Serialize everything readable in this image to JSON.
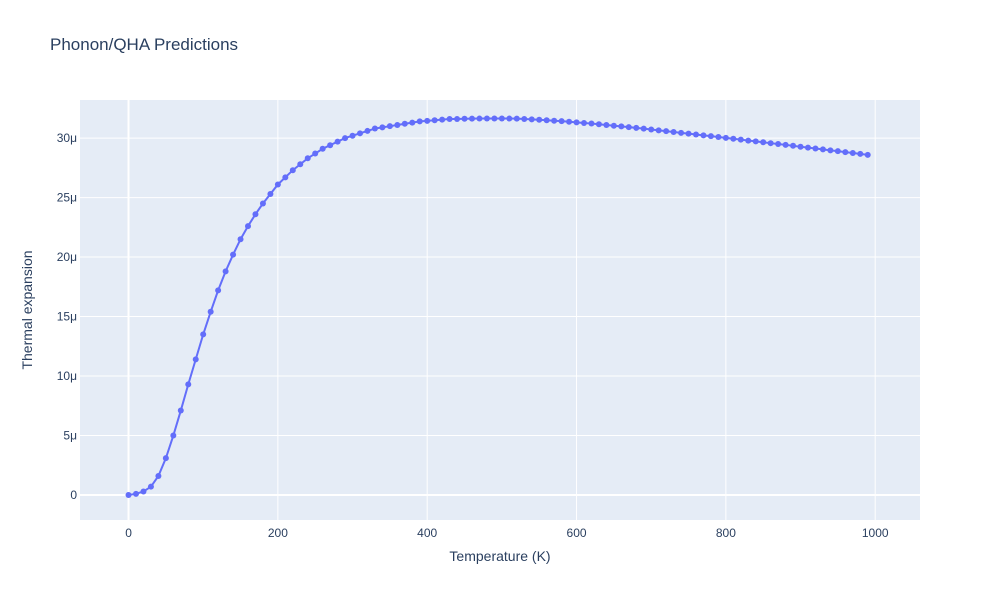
{
  "chart_data": {
    "type": "line",
    "mode": "lines+markers",
    "title": "Phonon/QHA Predictions",
    "xlabel": "Temperature (K)",
    "ylabel": "Thermal expansion",
    "xlim": [
      -65,
      1060
    ],
    "ylim": [
      -2.1,
      33.2
    ],
    "x_ticks": [
      0,
      200,
      400,
      600,
      800,
      1000
    ],
    "x_tick_labels": [
      "0",
      "200",
      "400",
      "600",
      "800",
      "1000"
    ],
    "y_ticks": [
      0,
      5,
      10,
      15,
      20,
      25,
      30
    ],
    "y_tick_labels": [
      "0",
      "5μ",
      "10μ",
      "15μ",
      "20μ",
      "25μ",
      "30μ"
    ],
    "grid": true,
    "plot_bgcolor": "#e5ecf6",
    "series": [
      {
        "color": "#636efa",
        "x": [
          0,
          10,
          20,
          30,
          40,
          50,
          60,
          70,
          80,
          90,
          100,
          110,
          120,
          130,
          140,
          150,
          160,
          170,
          180,
          190,
          200,
          210,
          220,
          230,
          240,
          250,
          260,
          270,
          280,
          290,
          300,
          310,
          320,
          330,
          340,
          350,
          360,
          370,
          380,
          390,
          400,
          410,
          420,
          430,
          440,
          450,
          460,
          470,
          480,
          490,
          500,
          510,
          520,
          530,
          540,
          550,
          560,
          570,
          580,
          590,
          600,
          610,
          620,
          630,
          640,
          650,
          660,
          670,
          680,
          690,
          700,
          710,
          720,
          730,
          740,
          750,
          760,
          770,
          780,
          790,
          800,
          810,
          820,
          830,
          840,
          850,
          860,
          870,
          880,
          890,
          900,
          910,
          920,
          930,
          940,
          950,
          960,
          970,
          980,
          990
        ],
        "y": [
          0.0,
          0.1,
          0.3,
          0.7,
          1.6,
          3.1,
          5.0,
          7.1,
          9.3,
          11.4,
          13.5,
          15.4,
          17.2,
          18.8,
          20.2,
          21.5,
          22.6,
          23.6,
          24.5,
          25.3,
          26.1,
          26.7,
          27.3,
          27.8,
          28.3,
          28.7,
          29.1,
          29.4,
          29.7,
          30.0,
          30.2,
          30.4,
          30.6,
          30.8,
          30.9,
          31.0,
          31.1,
          31.2,
          31.3,
          31.4,
          31.45,
          31.5,
          31.55,
          31.6,
          31.6,
          31.62,
          31.63,
          31.64,
          31.65,
          31.65,
          31.65,
          31.64,
          31.63,
          31.6,
          31.57,
          31.54,
          31.5,
          31.46,
          31.42,
          31.37,
          31.32,
          31.27,
          31.22,
          31.16,
          31.1,
          31.04,
          30.98,
          30.92,
          30.86,
          30.79,
          30.72,
          30.65,
          30.58,
          30.51,
          30.44,
          30.37,
          30.3,
          30.23,
          30.16,
          30.09,
          30.02,
          29.94,
          29.87,
          29.79,
          29.72,
          29.65,
          29.57,
          29.5,
          29.43,
          29.35,
          29.27,
          29.2,
          29.12,
          29.05,
          28.97,
          28.9,
          28.82,
          28.75,
          28.67,
          28.59
        ]
      }
    ]
  }
}
